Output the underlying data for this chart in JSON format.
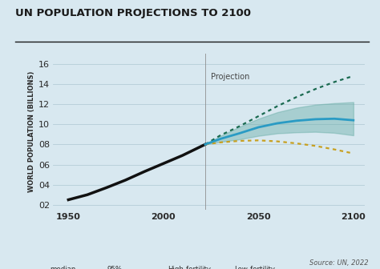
{
  "title": "UN POPULATION PROJECTIONS TO 2100",
  "ylabel": "WORLD POPULATION (BILLIONS)",
  "bg_color": "#d8e8f0",
  "plot_bg_color": "#d8e8f0",
  "title_color": "#1a1a1a",
  "axis_label_color": "#2a2a2a",
  "historical_color": "#111111",
  "median_color": "#2a9bc4",
  "confidence_color": "#5fa8a0",
  "confidence_alpha": 0.4,
  "high_fertility_color": "#1a6a50",
  "low_fertility_color": "#c8a020",
  "projection_line_color": "#888888",
  "projection_label": "Projection",
  "source_text": "Source: UN, 2022",
  "yticks": [
    2,
    4,
    6,
    8,
    10,
    12,
    14,
    16
  ],
  "ytick_labels": [
    "02",
    "04",
    "06",
    "08",
    "10",
    "12",
    "14",
    "16"
  ],
  "xticks": [
    1950,
    2000,
    2050,
    2100
  ],
  "year_proj": 2022,
  "hist_values": [
    [
      1950,
      2.5
    ],
    [
      1960,
      3.0
    ],
    [
      1970,
      3.7
    ],
    [
      1980,
      4.45
    ],
    [
      1990,
      5.3
    ],
    [
      2000,
      6.1
    ],
    [
      2010,
      6.9
    ],
    [
      2022,
      8.0
    ]
  ],
  "median_values": [
    [
      2022,
      8.0
    ],
    [
      2030,
      8.55
    ],
    [
      2040,
      9.1
    ],
    [
      2050,
      9.7
    ],
    [
      2060,
      10.1
    ],
    [
      2070,
      10.35
    ],
    [
      2080,
      10.5
    ],
    [
      2090,
      10.55
    ],
    [
      2100,
      10.4
    ]
  ],
  "high_fertility_values": [
    [
      2022,
      8.0
    ],
    [
      2030,
      8.9
    ],
    [
      2040,
      9.8
    ],
    [
      2050,
      10.8
    ],
    [
      2060,
      11.8
    ],
    [
      2070,
      12.7
    ],
    [
      2080,
      13.5
    ],
    [
      2090,
      14.2
    ],
    [
      2100,
      14.8
    ]
  ],
  "low_fertility_values": [
    [
      2022,
      8.0
    ],
    [
      2030,
      8.2
    ],
    [
      2040,
      8.35
    ],
    [
      2050,
      8.4
    ],
    [
      2060,
      8.3
    ],
    [
      2070,
      8.1
    ],
    [
      2080,
      7.85
    ],
    [
      2090,
      7.5
    ],
    [
      2100,
      7.1
    ]
  ],
  "conf95_upper": [
    [
      2022,
      8.0
    ],
    [
      2030,
      8.85
    ],
    [
      2040,
      9.75
    ],
    [
      2050,
      10.55
    ],
    [
      2060,
      11.2
    ],
    [
      2070,
      11.65
    ],
    [
      2080,
      11.95
    ],
    [
      2090,
      12.1
    ],
    [
      2100,
      12.2
    ]
  ],
  "conf95_lower": [
    [
      2022,
      8.0
    ],
    [
      2030,
      8.25
    ],
    [
      2040,
      8.5
    ],
    [
      2050,
      8.85
    ],
    [
      2060,
      9.1
    ],
    [
      2070,
      9.2
    ],
    [
      2080,
      9.25
    ],
    [
      2090,
      9.15
    ],
    [
      2100,
      8.9
    ]
  ]
}
